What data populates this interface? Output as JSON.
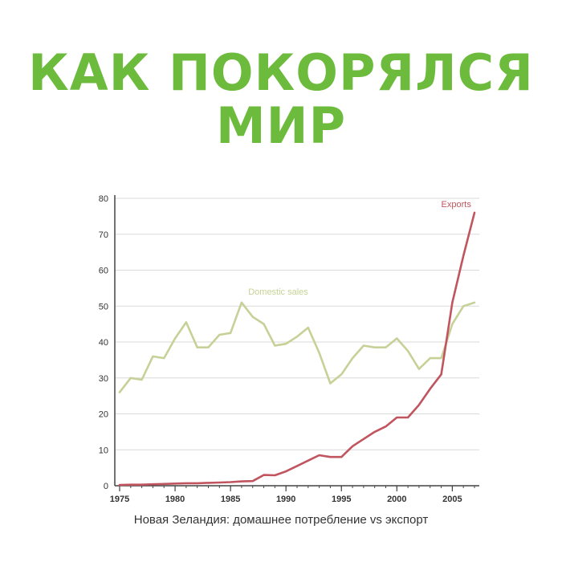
{
  "headline": {
    "line1": "КАК ПОКОРЯЛСЯ",
    "line2": "МИР",
    "color": "#6cbb3c"
  },
  "caption": "Новая Зеландия: домашнее потребление vs экспорт",
  "chart_data": {
    "type": "line",
    "title": "",
    "xlabel": "",
    "ylabel": "",
    "xlim": [
      1975,
      2007
    ],
    "ylim": [
      0,
      80
    ],
    "x_ticks": [
      1975,
      1980,
      1985,
      1990,
      1995,
      2000,
      2005
    ],
    "y_ticks": [
      0,
      10,
      20,
      30,
      40,
      50,
      60,
      70,
      80
    ],
    "grid": "horizontal",
    "legend": "inline labels",
    "series": [
      {
        "name": "Domestic sales",
        "color": "#c6d197",
        "x": [
          1975,
          1976,
          1977,
          1978,
          1979,
          1980,
          1981,
          1982,
          1983,
          1984,
          1985,
          1986,
          1987,
          1988,
          1989,
          1990,
          1991,
          1992,
          1993,
          1994,
          1995,
          1996,
          1997,
          1998,
          1999,
          2000,
          2001,
          2002,
          2003,
          2004,
          2005,
          2006,
          2007
        ],
        "y": [
          26,
          30,
          29.5,
          36,
          35.5,
          41,
          45.5,
          38.5,
          38.5,
          42,
          42.5,
          51,
          47,
          45,
          39,
          39.5,
          41.5,
          44,
          37,
          28.5,
          31,
          35.5,
          39,
          38.5,
          38.5,
          41,
          37.5,
          32.5,
          35.5,
          35.5,
          45,
          50,
          51
        ]
      },
      {
        "name": "Exports",
        "color": "#c0545f",
        "x": [
          1975,
          1976,
          1977,
          1978,
          1979,
          1980,
          1981,
          1982,
          1983,
          1984,
          1985,
          1986,
          1987,
          1988,
          1989,
          1990,
          1991,
          1992,
          1993,
          1994,
          1995,
          1996,
          1997,
          1998,
          1999,
          2000,
          2001,
          2002,
          2003,
          2004,
          2005,
          2006,
          2007
        ],
        "y": [
          0.2,
          0.3,
          0.3,
          0.4,
          0.5,
          0.6,
          0.7,
          0.7,
          0.8,
          0.9,
          1.0,
          1.2,
          1.3,
          3.0,
          2.9,
          4.0,
          5.5,
          7.0,
          8.5,
          8.0,
          8.0,
          11,
          13,
          15,
          16.5,
          19,
          19,
          22.5,
          27,
          31,
          51,
          64,
          76
        ]
      }
    ]
  }
}
